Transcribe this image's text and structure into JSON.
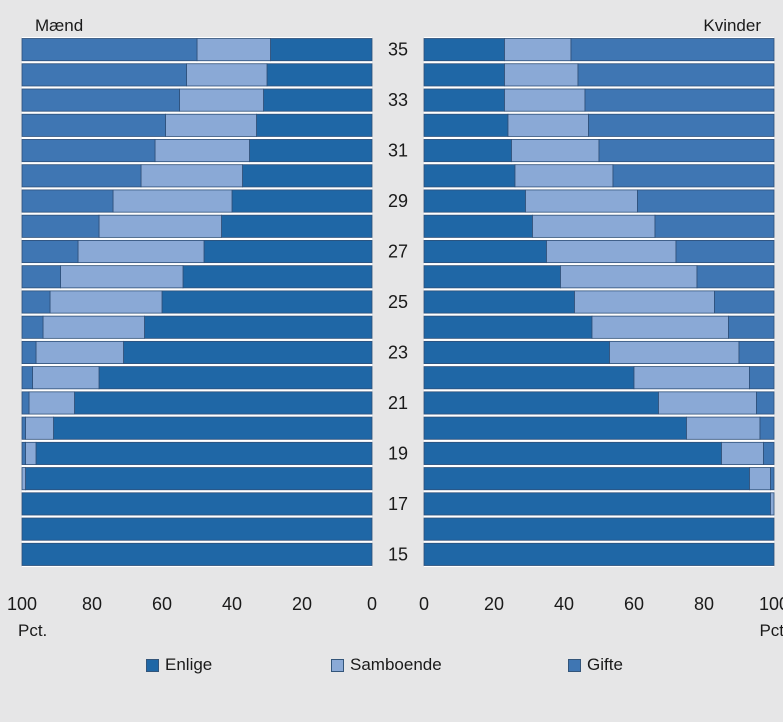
{
  "chart_data": [
    {
      "type": "bar",
      "orientation": "horizontal",
      "stacked": true,
      "title": "Mænd",
      "xlabel": "Pct.",
      "xlim": [
        100,
        0
      ],
      "x_direction": "reversed",
      "xticks": [
        "100",
        "80",
        "60",
        "40",
        "20",
        "0"
      ],
      "categories": [
        "35",
        "34",
        "33",
        "32",
        "31",
        "30",
        "29",
        "28",
        "27",
        "26",
        "25",
        "24",
        "23",
        "22",
        "21",
        "20",
        "19",
        "18",
        "17",
        "16",
        "15"
      ],
      "category_labels": [
        "35",
        "",
        "33",
        "",
        "31",
        "",
        "29",
        "",
        "27",
        "",
        "25",
        "",
        "23",
        "",
        "21",
        "",
        "19",
        "",
        "17",
        "",
        "15"
      ],
      "series": [
        {
          "name": "Enlige",
          "values": [
            29,
            30,
            31,
            33,
            35,
            37,
            40,
            43,
            48,
            54,
            60,
            65,
            71,
            78,
            85,
            91,
            96,
            99,
            100,
            100,
            100
          ]
        },
        {
          "name": "Samboende",
          "values": [
            21,
            23,
            24,
            26,
            27,
            29,
            34,
            35,
            36,
            35,
            32,
            29,
            25,
            19,
            13,
            8,
            3,
            1,
            0,
            0,
            0
          ]
        },
        {
          "name": "Gifte",
          "values": [
            50,
            47,
            45,
            41,
            38,
            34,
            26,
            22,
            16,
            11,
            8,
            6,
            4,
            3,
            2,
            1,
            1,
            0,
            0,
            0,
            0
          ]
        }
      ]
    },
    {
      "type": "bar",
      "orientation": "horizontal",
      "stacked": true,
      "title": "Kvinder",
      "xlabel": "Pct",
      "xlim": [
        0,
        100
      ],
      "xticks": [
        "0",
        "20",
        "40",
        "60",
        "80",
        "100"
      ],
      "categories": [
        "35",
        "34",
        "33",
        "32",
        "31",
        "30",
        "29",
        "28",
        "27",
        "26",
        "25",
        "24",
        "23",
        "22",
        "21",
        "20",
        "19",
        "18",
        "17",
        "16",
        "15"
      ],
      "series": [
        {
          "name": "Enlige",
          "values": [
            23,
            23,
            23,
            24,
            25,
            26,
            29,
            31,
            35,
            39,
            43,
            48,
            53,
            60,
            67,
            75,
            85,
            93,
            99,
            100,
            100
          ]
        },
        {
          "name": "Samboende",
          "values": [
            19,
            21,
            23,
            23,
            25,
            28,
            32,
            35,
            37,
            39,
            40,
            39,
            37,
            33,
            28,
            21,
            12,
            6,
            1,
            0,
            0
          ]
        },
        {
          "name": "Gifte",
          "values": [
            58,
            56,
            54,
            53,
            50,
            46,
            39,
            34,
            28,
            22,
            17,
            13,
            10,
            7,
            5,
            4,
            3,
            1,
            0,
            0,
            0
          ]
        }
      ]
    }
  ],
  "colors": {
    "enlige": "#1f67a6",
    "samboende": "#8aa9d6",
    "gifte": "#3f76b3",
    "edge": "#2e4f78",
    "background": "#e6e6e7",
    "plot_background": "#ffffff"
  },
  "legend": {
    "placement": "bottom",
    "items": [
      {
        "label": "Enlige",
        "color": "#1f67a6"
      },
      {
        "label": "Samboende",
        "color": "#8aa9d6"
      },
      {
        "label": "Gifte",
        "color": "#3f76b3"
      }
    ]
  }
}
